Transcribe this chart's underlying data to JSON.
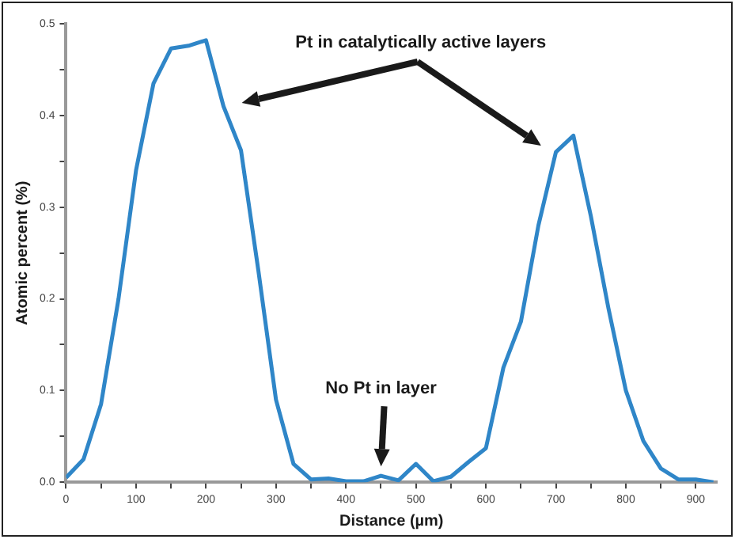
{
  "chart_data": {
    "type": "line",
    "xlabel": "Distance (µm)",
    "ylabel": "Atomic percent (%)",
    "x": [
      0,
      25,
      50,
      75,
      100,
      125,
      150,
      175,
      200,
      225,
      250,
      275,
      300,
      325,
      350,
      375,
      400,
      425,
      450,
      475,
      500,
      525,
      550,
      575,
      600,
      625,
      650,
      675,
      700,
      725,
      750,
      775,
      800,
      825,
      850,
      875,
      900,
      925
    ],
    "series": [
      {
        "color": "#2f86c8",
        "values": [
          0.005,
          0.025,
          0.085,
          0.2,
          0.34,
          0.435,
          0.473,
          0.476,
          0.482,
          0.41,
          0.362,
          0.23,
          0.09,
          0.02,
          0.003,
          0.004,
          0.001,
          0.001,
          0.007,
          0.002,
          0.02,
          0.001,
          0.006,
          0.022,
          0.037,
          0.125,
          0.175,
          0.28,
          0.36,
          0.378,
          0.29,
          0.19,
          0.1,
          0.045,
          0.015,
          0.003,
          0.003,
          0.0
        ]
      }
    ],
    "xlim": [
      0,
      930
    ],
    "xticks": [
      0,
      {
        "value": 50,
        "label": null
      },
      100,
      {
        "value": 150,
        "label": null
      },
      200,
      {
        "value": 250,
        "label": null
      },
      300,
      {
        "value": 350,
        "label": null
      },
      400,
      {
        "value": 450,
        "label": null
      },
      500,
      {
        "value": 550,
        "label": null
      },
      600,
      {
        "value": 650,
        "label": null
      },
      700,
      {
        "value": 750,
        "label": null
      },
      800,
      {
        "value": 850,
        "label": null
      },
      900
    ],
    "ylim": [
      0,
      0.5
    ],
    "yticks": [
      {
        "value": 0,
        "label": "0.0"
      },
      {
        "value": 0.05,
        "label": null
      },
      0.1,
      {
        "value": 0.15,
        "label": null
      },
      0.2,
      {
        "value": 0.25,
        "label": null
      },
      0.3,
      {
        "value": 0.35,
        "label": null
      },
      0.4,
      {
        "value": 0.45,
        "label": null
      },
      0.5
    ],
    "annotations": [
      "Pt in catalytically active layers",
      "No Pt in layer"
    ],
    "grid": false,
    "legend": false,
    "marker": "none",
    "line_style": "solid"
  }
}
